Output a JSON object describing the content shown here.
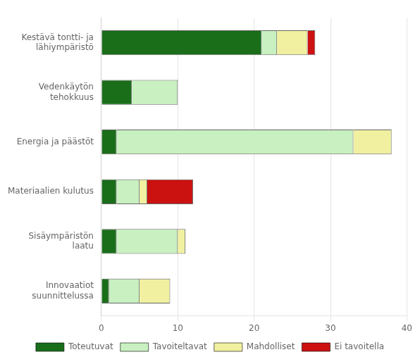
{
  "chart_data": {
    "type": "bar",
    "orientation": "horizontal",
    "stacked": true,
    "categories": [
      "Innovaatiot\nsuunnittelussa",
      "Sisäympäristön\nlaatu",
      "Materiaalien kulutus",
      "Energia ja päästöt",
      "Vedenkäytön\ntehokkuus",
      "Kestävä tontti- ja\nlähiympäristö"
    ],
    "series": [
      {
        "name": "Toteutuvat",
        "color": "#1a6e1a",
        "values": [
          1,
          2,
          2,
          2,
          4,
          21
        ]
      },
      {
        "name": "Tavoiteltavat",
        "color": "#c8f0c0",
        "values": [
          4,
          8,
          3,
          31,
          6,
          2
        ]
      },
      {
        "name": "Mahdolliset",
        "color": "#f0f0a0",
        "values": [
          4,
          1,
          1,
          5,
          0,
          4
        ]
      },
      {
        "name": "Ei tavoitella",
        "color": "#cc1111",
        "values": [
          0,
          0,
          6,
          0,
          0,
          1
        ]
      }
    ],
    "xlim": [
      0,
      40
    ],
    "xticks": [
      0,
      10,
      20,
      30,
      40
    ],
    "grid": true,
    "legend": "bottom"
  }
}
